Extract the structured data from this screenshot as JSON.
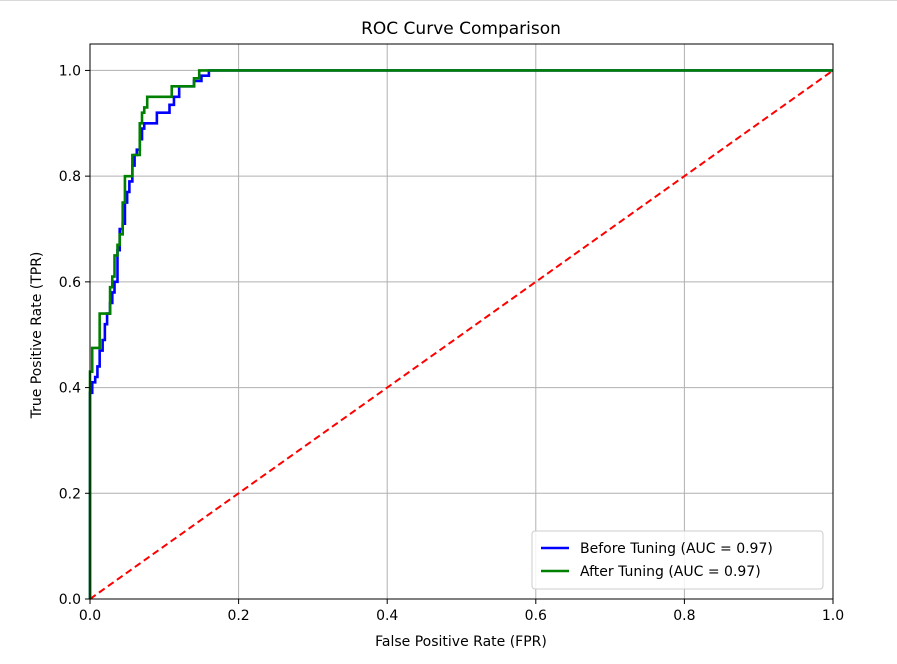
{
  "chart_data": {
    "type": "line",
    "title": "ROC Curve Comparison",
    "xlabel": "False Positive Rate (FPR)",
    "ylabel": "True Positive Rate (TPR)",
    "xlim": [
      0.0,
      1.0
    ],
    "ylim": [
      0.0,
      1.05
    ],
    "xticks": [
      "0.0",
      "0.2",
      "0.4",
      "0.6",
      "0.8",
      "1.0"
    ],
    "yticks": [
      "0.0",
      "0.2",
      "0.4",
      "0.6",
      "0.8",
      "1.0"
    ],
    "grid": true,
    "legend_position": "lower-right",
    "series": [
      {
        "name": "Before Tuning (AUC = 0.97)",
        "color": "#0000ff",
        "style": "solid",
        "x": [
          0.0,
          0.0,
          0.003,
          0.003,
          0.007,
          0.007,
          0.01,
          0.01,
          0.013,
          0.013,
          0.017,
          0.017,
          0.02,
          0.02,
          0.023,
          0.023,
          0.027,
          0.027,
          0.03,
          0.03,
          0.033,
          0.033,
          0.037,
          0.037,
          0.04,
          0.04,
          0.044,
          0.044,
          0.047,
          0.047,
          0.05,
          0.05,
          0.053,
          0.053,
          0.057,
          0.057,
          0.06,
          0.06,
          0.063,
          0.063,
          0.067,
          0.067,
          0.07,
          0.07,
          0.073,
          0.073,
          0.077,
          0.077,
          0.09,
          0.09,
          0.097,
          0.097,
          0.107,
          0.107,
          0.113,
          0.113,
          0.12,
          0.12,
          0.13,
          0.13,
          0.14,
          0.14,
          0.15,
          0.15,
          0.16,
          0.16,
          1.0
        ],
        "y": [
          0.0,
          0.39,
          0.39,
          0.41,
          0.41,
          0.42,
          0.42,
          0.44,
          0.44,
          0.47,
          0.47,
          0.49,
          0.49,
          0.52,
          0.52,
          0.54,
          0.54,
          0.56,
          0.56,
          0.58,
          0.58,
          0.6,
          0.6,
          0.66,
          0.66,
          0.7,
          0.7,
          0.71,
          0.71,
          0.75,
          0.75,
          0.77,
          0.77,
          0.79,
          0.79,
          0.82,
          0.82,
          0.84,
          0.84,
          0.85,
          0.85,
          0.87,
          0.87,
          0.89,
          0.89,
          0.9,
          0.9,
          0.9,
          0.9,
          0.92,
          0.92,
          0.92,
          0.92,
          0.935,
          0.935,
          0.95,
          0.95,
          0.97,
          0.97,
          0.97,
          0.97,
          0.98,
          0.98,
          0.99,
          0.99,
          1.0,
          1.0
        ]
      },
      {
        "name": "After Tuning (AUC = 0.97)",
        "color": "#008000",
        "style": "solid",
        "x": [
          0.0,
          0.0,
          0.003,
          0.003,
          0.013,
          0.013,
          0.02,
          0.02,
          0.027,
          0.027,
          0.03,
          0.03,
          0.033,
          0.033,
          0.037,
          0.037,
          0.04,
          0.04,
          0.044,
          0.044,
          0.047,
          0.047,
          0.05,
          0.05,
          0.057,
          0.057,
          0.063,
          0.063,
          0.067,
          0.067,
          0.07,
          0.07,
          0.073,
          0.073,
          0.077,
          0.077,
          0.08,
          0.08,
          0.11,
          0.11,
          0.13,
          0.13,
          0.14,
          0.14,
          0.147,
          0.147,
          1.0
        ],
        "y": [
          0.0,
          0.43,
          0.43,
          0.475,
          0.475,
          0.54,
          0.54,
          0.54,
          0.54,
          0.59,
          0.59,
          0.61,
          0.61,
          0.65,
          0.65,
          0.67,
          0.67,
          0.69,
          0.69,
          0.75,
          0.75,
          0.8,
          0.8,
          0.8,
          0.8,
          0.84,
          0.84,
          0.84,
          0.84,
          0.9,
          0.9,
          0.92,
          0.92,
          0.93,
          0.93,
          0.95,
          0.95,
          0.95,
          0.95,
          0.97,
          0.97,
          0.97,
          0.97,
          0.985,
          0.985,
          1.0,
          1.0
        ]
      },
      {
        "name": "",
        "color": "#ff0000",
        "style": "dashed",
        "x": [
          0.0,
          1.0
        ],
        "y": [
          0.0,
          1.0
        ]
      }
    ]
  }
}
